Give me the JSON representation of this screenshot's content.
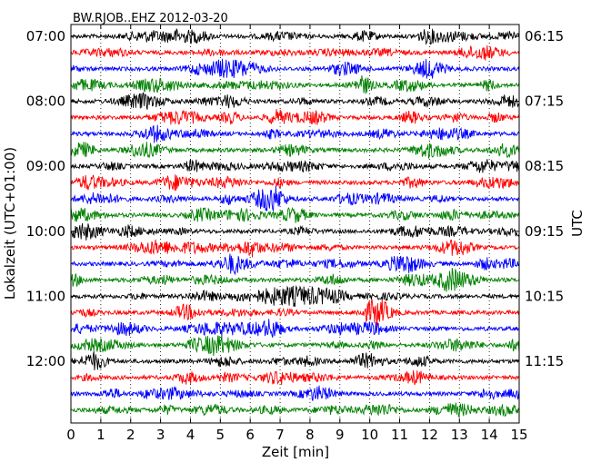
{
  "chart_data": {
    "type": "line",
    "title": "BW.RJOB..EHZ 2012-03-20",
    "xlabel": "Zeit  [min]",
    "ylabel_left": "Lokalzeit (UTC+01:00)",
    "ylabel_right": "UTC",
    "xlim": [
      0,
      15
    ],
    "x_ticks": [
      "0",
      "1",
      "2",
      "3",
      "4",
      "5",
      "6",
      "7",
      "8",
      "9",
      "10",
      "11",
      "12",
      "13",
      "14",
      "15"
    ],
    "left_ticks": [
      {
        "row": 0,
        "label": "07:00"
      },
      {
        "row": 4,
        "label": "08:00"
      },
      {
        "row": 8,
        "label": "09:00"
      },
      {
        "row": 12,
        "label": "10:00"
      },
      {
        "row": 16,
        "label": "11:00"
      },
      {
        "row": 20,
        "label": "12:00"
      }
    ],
    "right_ticks": [
      {
        "row": 0,
        "label": "06:15"
      },
      {
        "row": 4,
        "label": "07:15"
      },
      {
        "row": 8,
        "label": "08:15"
      },
      {
        "row": 12,
        "label": "09:15"
      },
      {
        "row": 16,
        "label": "10:15"
      },
      {
        "row": 20,
        "label": "11:15"
      }
    ],
    "row_count": 24,
    "row_colors": [
      "#000000",
      "#ff0000",
      "#0000ff",
      "#008000"
    ],
    "vertical_grid": "dotted at each minute",
    "series_note_amplitude": "noise-like seismic traces, one per 15-minute segment"
  }
}
